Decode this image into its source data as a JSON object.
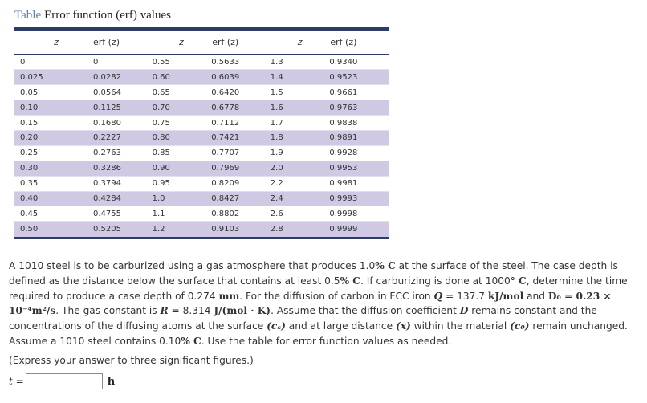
{
  "table": {
    "tag": "Table",
    "title": "Error function (erf) values",
    "headers": [
      "z",
      "erf (z)",
      "z",
      "erf (z)",
      "z",
      "erf (z)"
    ],
    "rows": [
      [
        "0",
        "0",
        "0.55",
        "0.5633",
        "1.3",
        "0.9340"
      ],
      [
        "0.025",
        "0.0282",
        "0.60",
        "0.6039",
        "1.4",
        "0.9523"
      ],
      [
        "0.05",
        "0.0564",
        "0.65",
        "0.6420",
        "1.5",
        "0.9661"
      ],
      [
        "0.10",
        "0.1125",
        "0.70",
        "0.6778",
        "1.6",
        "0.9763"
      ],
      [
        "0.15",
        "0.1680",
        "0.75",
        "0.7112",
        "1.7",
        "0.9838"
      ],
      [
        "0.20",
        "0.2227",
        "0.80",
        "0.7421",
        "1.8",
        "0.9891"
      ],
      [
        "0.25",
        "0.2763",
        "0.85",
        "0.7707",
        "1.9",
        "0.9928"
      ],
      [
        "0.30",
        "0.3286",
        "0.90",
        "0.7969",
        "2.0",
        "0.9953"
      ],
      [
        "0.35",
        "0.3794",
        "0.95",
        "0.8209",
        "2.2",
        "0.9981"
      ],
      [
        "0.40",
        "0.4284",
        "1.0",
        "0.8427",
        "2.4",
        "0.9993"
      ],
      [
        "0.45",
        "0.4755",
        "1.1",
        "0.8802",
        "2.6",
        "0.9998"
      ],
      [
        "0.50",
        "0.5205",
        "1.2",
        "0.9103",
        "2.8",
        "0.9999"
      ]
    ]
  },
  "problem": {
    "t1": "A 1010 steel is to be carburized using a gas atmosphere that produces 1.0",
    "m1": "% C",
    "t2": " at the surface of the steel. The case depth is defined as the distance below the surface that contains at least 0.5",
    "m2": "% C",
    "t3": ". If carburizing is done at 1000",
    "m3": "° C",
    "t4": ", determine the time required to produce a case depth of 0.274 ",
    "m4": "mm",
    "t5": ". For the diffusion of carbon in FCC iron ",
    "m5": "Q",
    "t6": " = 137.7 ",
    "m6": "kJ/mol",
    "t7": " and ",
    "m7": "D₀ = 0.23 × 10⁻⁴m²/s",
    "t8": ". The gas constant is ",
    "m8": "R",
    "t9": " = 8.314 ",
    "m9": "J/(mol · K)",
    "t10": ". Assume that the diffusion coefficient ",
    "m10": "D",
    "t11": " remains constant and the concentrations of the diffusing atoms at the surface ",
    "m11": "(cₛ)",
    "t12": " and at large distance ",
    "m12": "(x)",
    "t13": " within the material ",
    "m13": "(c₀)",
    "t14": " remain unchanged. Assume a 1010 steel contains 0.10",
    "m14": "% C",
    "t15": ". Use the table for error function values as needed."
  },
  "note": "(Express your answer to three significant figures.)",
  "answer": {
    "label_var": "t",
    "label_eq": " =",
    "value": "",
    "placeholder": "",
    "unit": "h"
  }
}
